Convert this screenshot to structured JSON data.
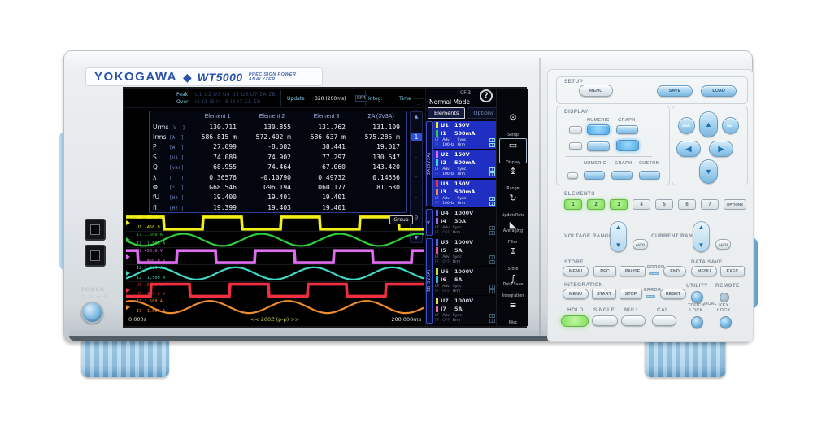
{
  "device": {
    "brand": "YOKOGAWA",
    "model": "WT5000",
    "model_desc": "PRECISION POWER ANALYZER",
    "power_label": "POWER"
  },
  "screen": {
    "status": {
      "peak_label": "Peak\nOver",
      "peak_row": "U1 U2 U3 U4 U5 U6 U7 ΣA ΣB\nI1 I2 I3 I4 I5 I6 I7 ΣA ΣB",
      "update_label": "Update",
      "update_value": "320 (200ms)",
      "update_flag": "DF/F",
      "integ_label": "Integ:",
      "time_label": "Time",
      "time_value": "------ : -- : --"
    },
    "mode": "Normal Mode",
    "cf_badge": "CF:3",
    "help": "?",
    "tabs": {
      "elements": "Elements",
      "options": "Options"
    },
    "table": {
      "headers": [
        "Element 1",
        "Element 2",
        "Element 3",
        "ΣA (3V3A)"
      ],
      "rows": [
        {
          "name": "Urms",
          "unit": "[V  ]",
          "values": [
            "130.711",
            "130.855",
            "131.762",
            "131.109"
          ]
        },
        {
          "name": "Irms",
          "unit": "[A  ]",
          "values": [
            "586.815 m",
            "572.402 m",
            "586.637 m",
            "575.285 m"
          ]
        },
        {
          "name": "P",
          "unit": "[W  ]",
          "values": [
            "27.099",
            "-8.082",
            "38.441",
            "19.017"
          ]
        },
        {
          "name": "S",
          "unit": "[VA ]",
          "values": [
            "74.089",
            "74.902",
            "77.297",
            "130.647"
          ]
        },
        {
          "name": "Q",
          "unit": "[var]",
          "values": [
            "68.955",
            "74.464",
            "-67.060",
            "143.420"
          ]
        },
        {
          "name": "λ",
          "unit": "[   ]",
          "values": [
            "0.36576",
            "-0.10790",
            "0.49732",
            "0.14556"
          ]
        },
        {
          "name": "Φ",
          "unit": "[°  ]",
          "values": [
            "G68.546",
            "G96.194",
            "D60.177",
            "81.630"
          ]
        },
        {
          "name": "fU",
          "unit": "[Hz ]",
          "values": [
            "19.400",
            "19.401",
            "19.401",
            ""
          ]
        },
        {
          "name": "fI",
          "unit": "[Hz ]",
          "values": [
            "19.399",
            "19.403",
            "19.401",
            ""
          ]
        }
      ]
    },
    "pager": {
      "up": "▲",
      "current": "1",
      "dots": [
        "·",
        "·",
        "·"
      ],
      "last": "9",
      "down": "▼"
    },
    "waveform": {
      "group_button": "Group",
      "t_start": "0.000s",
      "t_center": "<< 200Z (p-p) >>",
      "t_end": "200.000ms",
      "cycles": 3.8,
      "traces": [
        {
          "ch": "U1",
          "top": "450.0 V",
          "bottom": "-450.0 V",
          "color": "#f2ee18",
          "type": "square",
          "phase": 0.02
        },
        {
          "ch": "I1",
          "top": "1.500 A",
          "bottom": "-1.500 A",
          "color": "#2ecf3a",
          "type": "sine",
          "phase": 0.52
        },
        {
          "ch": "U2",
          "top": "450.0 V",
          "bottom": "-450.0 V",
          "color": "#e06cf0",
          "type": "square",
          "phase": 0.35
        },
        {
          "ch": "I2",
          "top": "1.500 A",
          "bottom": "-1.500 A",
          "color": "#3fd9c6",
          "type": "sine",
          "phase": 0.85
        },
        {
          "ch": "U3",
          "top": "450.0 V",
          "bottom": "-450.0 V",
          "color": "#f03040",
          "type": "square",
          "phase": 0.68
        },
        {
          "ch": "I3",
          "top": "1.500 A",
          "bottom": "-1.500 A",
          "color": "#f08c2e",
          "type": "sine",
          "phase": 1.18
        }
      ]
    },
    "elements_panel": {
      "group_labels": [
        {
          "text": "ΣA(3V3A)",
          "span": 3
        },
        {
          "text": "4",
          "span": 1
        },
        {
          "text": "ΣB(3V3A)",
          "span": 3
        }
      ],
      "elements": [
        {
          "u": "U1",
          "u_range": "150V",
          "u_color": "#f2ee18",
          "i": "I1",
          "i_range": "500mA",
          "i_color": "#2ecf3a",
          "lf": "LF",
          "ff": "FF",
          "adv": "Adv",
          "freq": "100Hz",
          "sync": "Sync",
          "hrm": "Hrm",
          "flag1": "1",
          "flag2": "1",
          "selected": true
        },
        {
          "u": "U2",
          "u_range": "150V",
          "u_color": "#e06cf0",
          "i": "I2",
          "i_range": "500mA",
          "i_color": "#3fd9c6",
          "lf": "LF",
          "ff": "FF",
          "adv": "Adv",
          "freq": "100Hz",
          "sync": "Sync",
          "hrm": "Hrm",
          "flag1": "1",
          "flag2": "1",
          "selected": true
        },
        {
          "u": "U3",
          "u_range": "150V",
          "u_color": "#f03040",
          "i": "I3",
          "i_range": "500mA",
          "i_color": "#f08c2e",
          "lf": "LF",
          "ff": "FF",
          "adv": "Adv",
          "freq": "100Hz",
          "sync": "Sync",
          "hrm": "Hrm",
          "flag1": "1",
          "flag2": "1",
          "selected": true
        },
        {
          "u": "U4",
          "u_range": "1000V",
          "u_color": "#4a6cf0",
          "i": "I4",
          "i_range": "30A",
          "i_color": "#9a6cf0",
          "lf": "LF",
          "ff": "FF",
          "adv": "Adv",
          "freq": "OFF",
          "sync": "Sync",
          "hrm": "Hrm",
          "flag1": "1",
          "flag2": "1",
          "selected": false
        },
        {
          "u": "U5",
          "u_range": "1000V",
          "u_color": "#4a6cf0",
          "i": "I5",
          "i_range": "5A",
          "i_color": "#f050a8",
          "lf": "LF",
          "ff": "FF",
          "adv": "Adv",
          "freq": "OFF",
          "sync": "Sync",
          "hrm": "Hrm",
          "flag1": "1",
          "flag2": "1",
          "selected": false
        },
        {
          "u": "U6",
          "u_range": "1000V",
          "u_color": "#c6e03a",
          "i": "I6",
          "i_range": "5A",
          "i_color": "#3ab4d8",
          "lf": "LF",
          "ff": "FF",
          "adv": "Adv",
          "freq": "OFF",
          "sync": "Sync",
          "hrm": "Hrm",
          "flag1": "1",
          "flag2": "1",
          "selected": false
        },
        {
          "u": "U7",
          "u_range": "1000V",
          "u_color": "#ece04a",
          "i": "I7",
          "i_range": "5A",
          "i_color": "#f06cb0",
          "lf": "LF",
          "ff": "FF",
          "adv": "Adv",
          "freq": "OFF",
          "sync": "Sync",
          "hrm": "Hrm",
          "flag1": "1",
          "flag2": "1",
          "selected": false
        }
      ],
      "menu": [
        {
          "icon": "gear-icon",
          "glyph": "⚙",
          "label": "Setup",
          "active": false
        },
        {
          "icon": "display-icon",
          "glyph": "▭",
          "label": "Display",
          "active": true
        },
        {
          "icon": "range-icon",
          "glyph": "↨",
          "label": "Range",
          "active": false
        },
        {
          "icon": "update-rate-icon",
          "glyph": "↻",
          "label": "UpdateRate\nAveraging",
          "active": false
        },
        {
          "icon": "filter-icon",
          "glyph": "◣",
          "label": "Filter",
          "active": false
        },
        {
          "icon": "store-icon",
          "glyph": "↧",
          "label": "Store\nData Save",
          "active": false
        },
        {
          "icon": "integration-icon",
          "glyph": "∫",
          "label": "Integration",
          "active": false
        },
        {
          "icon": "misc-icon",
          "glyph": "≡",
          "label": "Misc",
          "active": false
        }
      ]
    }
  },
  "panel": {
    "setup": {
      "label": "SETUP",
      "menu": "MENU",
      "save": "SAVE",
      "load": "LOAD"
    },
    "display": {
      "label": "DISPLAY",
      "numeric": "NUMERIC",
      "graph": "GRAPH",
      "custom": "CUSTOM"
    },
    "nav": {
      "esc": "ESC",
      "set": "SET",
      "up": "▲",
      "down": "▼",
      "left": "◀",
      "right": "▶"
    },
    "elements": {
      "label": "ELEMENTS",
      "keys": [
        "1",
        "2",
        "3",
        "4",
        "5",
        "6",
        "7"
      ],
      "options": "OPTIONS",
      "active_count": 3
    },
    "range": {
      "voltage": "VOLTAGE RANGE",
      "current": "CURRENT RANGE",
      "auto": "AUTO"
    },
    "store": {
      "label": "STORE",
      "menu": "MENU",
      "rec": "REC",
      "pause": "PAUSE",
      "error": "ERROR",
      "end": "END"
    },
    "data_save": {
      "label": "DATA SAVE",
      "menu": "MENU",
      "exec": "EXEC"
    },
    "integration": {
      "label": "INTEGRATION",
      "menu": "MENU",
      "start": "START",
      "stop": "STOP",
      "error": "ERROR",
      "reset": "RESET"
    },
    "utility": {
      "utility": "UTILITY",
      "local": "LOCAL",
      "remote": "REMOTE"
    },
    "bottom": {
      "hold": "HOLD",
      "single": "SINGLE",
      "null_btn": "NULL",
      "cal": "CAL",
      "touch_lock": "TOUCH\nLOCK",
      "key_lock": "KEY\nLOCK"
    }
  }
}
